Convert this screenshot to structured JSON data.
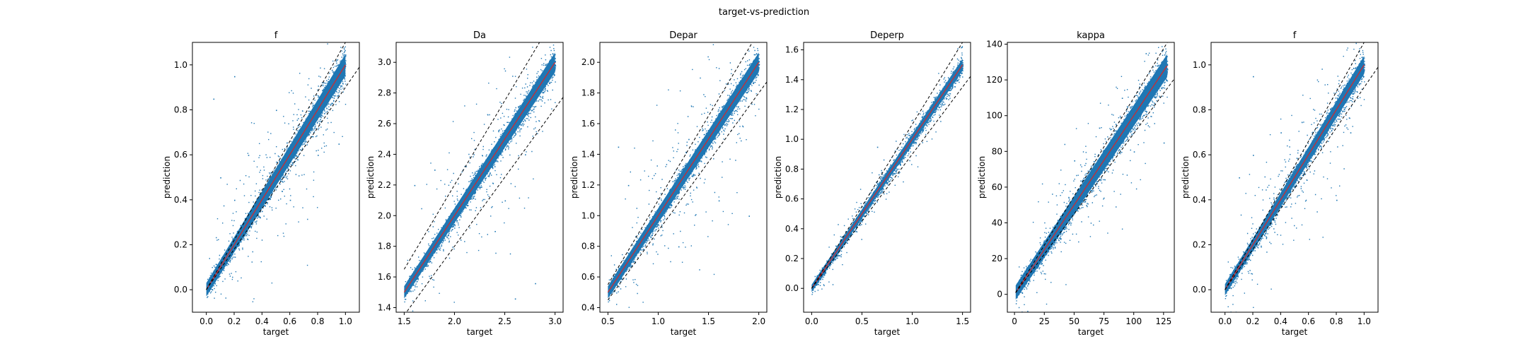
{
  "figure": {
    "suptitle": "target-vs-prediction"
  },
  "colors": {
    "points": "#1f77b4",
    "identity_line": "#d62728",
    "bounds": "#000000"
  },
  "chart_data": [
    {
      "type": "scatter",
      "title": "f",
      "xlabel": "target",
      "ylabel": "prediction",
      "xlim": [
        -0.1,
        1.1
      ],
      "ylim": [
        -0.1,
        1.1
      ],
      "xticks": [
        0.0,
        0.2,
        0.4,
        0.6,
        0.8,
        1.0
      ],
      "xticklabels": [
        "0.0",
        "0.2",
        "0.4",
        "0.6",
        "0.8",
        "1.0"
      ],
      "yticks": [
        0.0,
        0.2,
        0.4,
        0.6,
        0.8,
        1.0
      ],
      "yticklabels": [
        "0.0",
        "0.2",
        "0.4",
        "0.6",
        "0.8",
        "1.0"
      ],
      "domain": [
        0.0,
        1.0
      ],
      "upper_bound_slope": 1.1,
      "lower_bound_slope": 0.9,
      "bound_intercepts": [
        0.0,
        0.0
      ],
      "dense_band_halfwidth": 0.03,
      "outlier_spread": 0.08,
      "cloud_sample": [
        [
          0.05,
          0.02
        ],
        [
          0.12,
          0.15
        ],
        [
          0.2,
          0.22
        ],
        [
          0.3,
          0.3
        ],
        [
          0.4,
          0.42
        ],
        [
          0.5,
          0.5
        ],
        [
          0.6,
          0.58
        ],
        [
          0.7,
          0.71
        ],
        [
          0.8,
          0.79
        ],
        [
          0.9,
          0.9
        ],
        [
          0.98,
          0.99
        ],
        [
          0.2,
          0.4
        ],
        [
          0.3,
          0.6
        ],
        [
          0.5,
          0.8
        ],
        [
          0.6,
          0.4
        ],
        [
          0.8,
          0.6
        ],
        [
          0.95,
          0.65
        ],
        [
          0.05,
          0.85
        ],
        [
          0.2,
          0.95
        ],
        [
          0.1,
          0.5
        ]
      ]
    },
    {
      "type": "scatter",
      "title": "Da",
      "xlabel": "target",
      "ylabel": "prediction",
      "xlim": [
        1.42,
        3.08
      ],
      "ylim": [
        1.37,
        3.13
      ],
      "xticks": [
        1.5,
        2.0,
        2.5,
        3.0
      ],
      "xticklabels": [
        "1.5",
        "2.0",
        "2.5",
        "3.0"
      ],
      "yticks": [
        1.4,
        1.6,
        1.8,
        2.0,
        2.2,
        2.4,
        2.6,
        2.8,
        3.0
      ],
      "yticklabels": [
        "1.4",
        "1.6",
        "1.8",
        "2.0",
        "2.2",
        "2.4",
        "2.6",
        "2.8",
        "3.0"
      ],
      "domain": [
        1.5,
        3.0
      ],
      "upper_bound_slope": 1.1,
      "lower_bound_slope": 0.9,
      "bound_intercepts": [
        0.0,
        0.0
      ],
      "dense_band_halfwidth": 0.04,
      "outlier_spread": 0.12,
      "cloud_sample": [
        [
          1.5,
          1.52
        ],
        [
          1.7,
          1.72
        ],
        [
          1.9,
          1.88
        ],
        [
          2.0,
          2.01
        ],
        [
          2.2,
          2.21
        ],
        [
          2.4,
          2.4
        ],
        [
          2.6,
          2.61
        ],
        [
          2.8,
          2.78
        ],
        [
          3.0,
          2.98
        ],
        [
          1.6,
          2.2
        ],
        [
          1.8,
          2.3
        ],
        [
          2.4,
          1.9
        ],
        [
          2.8,
          1.56
        ],
        [
          2.6,
          1.46
        ],
        [
          2.5,
          2.1
        ],
        [
          2.7,
          2.4
        ]
      ]
    },
    {
      "type": "scatter",
      "title": "Depar",
      "xlabel": "target",
      "ylabel": "prediction",
      "xlim": [
        0.42,
        2.08
      ],
      "ylim": [
        0.37,
        2.13
      ],
      "xticks": [
        0.5,
        1.0,
        1.5,
        2.0
      ],
      "xticklabels": [
        "0.5",
        "1.0",
        "1.5",
        "2.0"
      ],
      "yticks": [
        0.4,
        0.6,
        0.8,
        1.0,
        1.2,
        1.4,
        1.6,
        1.8,
        2.0
      ],
      "yticklabels": [
        "0.4",
        "0.6",
        "0.8",
        "1.0",
        "1.2",
        "1.4",
        "1.6",
        "1.8",
        "2.0"
      ],
      "domain": [
        0.5,
        2.0
      ],
      "upper_bound_slope": 1.1,
      "lower_bound_slope": 0.9,
      "bound_intercepts": [
        0.0,
        0.0
      ],
      "dense_band_halfwidth": 0.04,
      "outlier_spread": 0.14,
      "cloud_sample": [
        [
          0.5,
          0.5
        ],
        [
          0.8,
          0.8
        ],
        [
          1.0,
          1.01
        ],
        [
          1.2,
          1.2
        ],
        [
          1.5,
          1.49
        ],
        [
          1.8,
          1.8
        ],
        [
          2.0,
          1.99
        ],
        [
          0.6,
          1.45
        ],
        [
          0.7,
          1.2
        ],
        [
          1.2,
          0.8
        ],
        [
          1.6,
          1.1
        ],
        [
          1.9,
          1.0
        ],
        [
          1.3,
          1.5
        ]
      ]
    },
    {
      "type": "scatter",
      "title": "Deperp",
      "xlabel": "target",
      "ylabel": "prediction",
      "xlim": [
        -0.08,
        1.58
      ],
      "ylim": [
        -0.16,
        1.65
      ],
      "xticks": [
        0.0,
        0.5,
        1.0,
        1.5
      ],
      "xticklabels": [
        "0.0",
        "0.5",
        "1.0",
        "1.5"
      ],
      "yticks": [
        0.0,
        0.2,
        0.4,
        0.6,
        0.8,
        1.0,
        1.2,
        1.4,
        1.6
      ],
      "yticklabels": [
        "0.0",
        "0.2",
        "0.4",
        "0.6",
        "0.8",
        "1.0",
        "1.2",
        "1.4",
        "1.6"
      ],
      "domain": [
        0.0,
        1.5
      ],
      "upper_bound_slope": 1.1,
      "lower_bound_slope": 0.9,
      "bound_intercepts": [
        0.0,
        0.0
      ],
      "dense_band_halfwidth": 0.025,
      "outlier_spread": 0.035,
      "cloud_sample": [
        [
          0.0,
          0.0
        ],
        [
          0.2,
          0.21
        ],
        [
          0.4,
          0.39
        ],
        [
          0.6,
          0.6
        ],
        [
          0.8,
          0.81
        ],
        [
          1.0,
          1.0
        ],
        [
          1.2,
          1.19
        ],
        [
          1.4,
          1.41
        ],
        [
          1.5,
          1.5
        ],
        [
          0.65,
          0.95
        ]
      ]
    },
    {
      "type": "scatter",
      "title": "kappa",
      "xlabel": "target",
      "ylabel": "prediction",
      "xlim": [
        -6,
        134
      ],
      "ylim": [
        -10,
        141
      ],
      "xticks": [
        0,
        25,
        50,
        75,
        100,
        125
      ],
      "xticklabels": [
        "0",
        "25",
        "50",
        "75",
        "100",
        "125"
      ],
      "yticks": [
        0,
        20,
        40,
        60,
        80,
        100,
        120,
        140
      ],
      "yticklabels": [
        "0",
        "20",
        "40",
        "60",
        "80",
        "100",
        "120",
        "140"
      ],
      "domain": [
        1,
        128
      ],
      "upper_bound_slope": 1.1,
      "lower_bound_slope": 0.9,
      "bound_intercepts": [
        0.0,
        0.0
      ],
      "dense_band_halfwidth": 4.0,
      "outlier_spread": 8.0,
      "cloud_sample": [
        [
          2,
          2
        ],
        [
          20,
          20
        ],
        [
          40,
          41
        ],
        [
          60,
          59
        ],
        [
          80,
          81
        ],
        [
          100,
          100
        ],
        [
          120,
          119
        ],
        [
          128,
          126
        ],
        [
          110,
          135
        ],
        [
          90,
          110
        ],
        [
          100,
          80
        ],
        [
          125,
          85
        ],
        [
          50,
          75
        ],
        [
          60,
          50
        ]
      ]
    },
    {
      "type": "scatter",
      "title": "f",
      "xlabel": "target",
      "ylabel": "prediction",
      "xlim": [
        -0.1,
        1.1
      ],
      "ylim": [
        -0.1,
        1.1
      ],
      "xticks": [
        0.0,
        0.2,
        0.4,
        0.6,
        0.8,
        1.0
      ],
      "xticklabels": [
        "0.0",
        "0.2",
        "0.4",
        "0.6",
        "0.8",
        "1.0"
      ],
      "yticks": [
        0.0,
        0.2,
        0.4,
        0.6,
        0.8,
        1.0
      ],
      "yticklabels": [
        "0.0",
        "0.2",
        "0.4",
        "0.6",
        "0.8",
        "1.0"
      ],
      "domain": [
        0.0,
        1.0
      ],
      "upper_bound_slope": 1.1,
      "lower_bound_slope": 0.9,
      "bound_intercepts": [
        0.0,
        0.0
      ],
      "dense_band_halfwidth": 0.025,
      "outlier_spread": 0.07,
      "cloud_sample": [
        [
          0.0,
          0.0
        ],
        [
          0.2,
          0.2
        ],
        [
          0.4,
          0.4
        ],
        [
          0.6,
          0.6
        ],
        [
          0.8,
          0.81
        ],
        [
          1.0,
          1.0
        ],
        [
          0.2,
          0.95
        ],
        [
          0.2,
          0.6
        ],
        [
          0.4,
          0.7
        ],
        [
          0.8,
          0.4
        ],
        [
          0.9,
          0.7
        ],
        [
          0.1,
          0.5
        ]
      ]
    }
  ]
}
